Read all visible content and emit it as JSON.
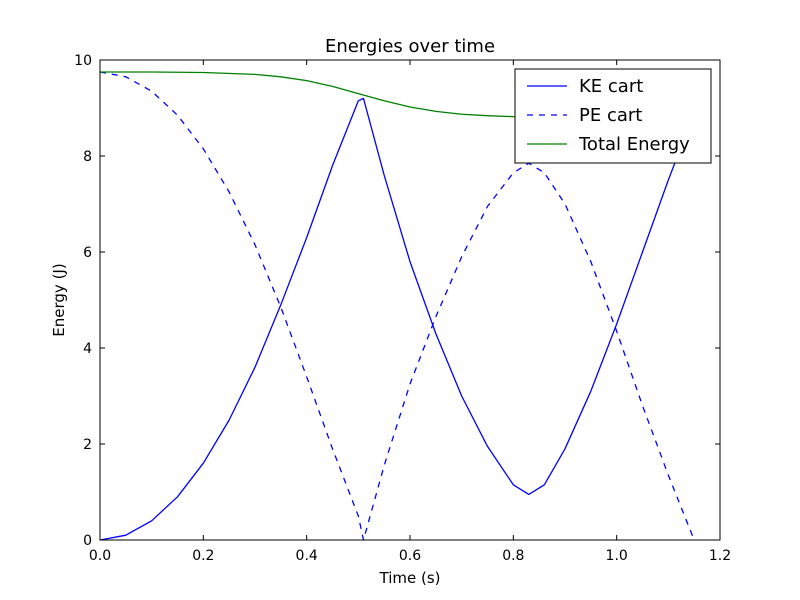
{
  "chart_data": {
    "type": "line",
    "title": "Energies over time",
    "xlabel": "Time (s)",
    "ylabel": "Energy (J)",
    "xlim": [
      0.0,
      1.2
    ],
    "ylim": [
      0,
      10
    ],
    "x_ticks": [
      "0.0",
      "0.2",
      "0.4",
      "0.6",
      "0.8",
      "1.0",
      "1.2"
    ],
    "y_ticks": [
      "0",
      "2",
      "4",
      "6",
      "8",
      "10"
    ],
    "grid": false,
    "legend": "top-right",
    "series": [
      {
        "name": "KE cart",
        "color": "#0000ff",
        "dash": "solid",
        "x": [
          0.0,
          0.05,
          0.1,
          0.15,
          0.2,
          0.25,
          0.3,
          0.35,
          0.4,
          0.45,
          0.5,
          0.51,
          0.55,
          0.6,
          0.65,
          0.7,
          0.75,
          0.8,
          0.83,
          0.86,
          0.9,
          0.95,
          1.0,
          1.05,
          1.1,
          1.15
        ],
        "y": [
          0.0,
          0.1,
          0.4,
          0.9,
          1.6,
          2.5,
          3.6,
          4.9,
          6.3,
          7.8,
          9.15,
          9.2,
          7.6,
          5.8,
          4.3,
          3.0,
          1.95,
          1.15,
          0.95,
          1.15,
          1.9,
          3.1,
          4.5,
          6.0,
          7.5,
          8.9
        ]
      },
      {
        "name": "PE cart",
        "color": "#0000ff",
        "dash": "dashed",
        "x": [
          0.0,
          0.05,
          0.1,
          0.15,
          0.2,
          0.25,
          0.3,
          0.35,
          0.4,
          0.45,
          0.5,
          0.51,
          0.55,
          0.6,
          0.65,
          0.7,
          0.75,
          0.8,
          0.83,
          0.86,
          0.9,
          0.95,
          1.0,
          1.05,
          1.1,
          1.15
        ],
        "y": [
          9.75,
          9.65,
          9.35,
          8.85,
          8.15,
          7.25,
          6.15,
          4.85,
          3.4,
          1.9,
          0.5,
          0.0,
          1.55,
          3.25,
          4.65,
          5.9,
          6.95,
          7.65,
          7.85,
          7.65,
          7.0,
          5.8,
          4.35,
          2.8,
          1.35,
          0.0
        ]
      },
      {
        "name": "Total Energy",
        "color": "#008000",
        "dash": "solid",
        "x": [
          0.0,
          0.1,
          0.2,
          0.3,
          0.35,
          0.4,
          0.45,
          0.5,
          0.55,
          0.6,
          0.65,
          0.7,
          0.75,
          0.8,
          0.9,
          1.0,
          1.1,
          1.15
        ],
        "y": [
          9.75,
          9.75,
          9.74,
          9.7,
          9.65,
          9.57,
          9.45,
          9.3,
          9.15,
          9.02,
          8.93,
          8.87,
          8.84,
          8.82,
          8.81,
          8.8,
          8.8,
          8.8
        ]
      }
    ]
  }
}
